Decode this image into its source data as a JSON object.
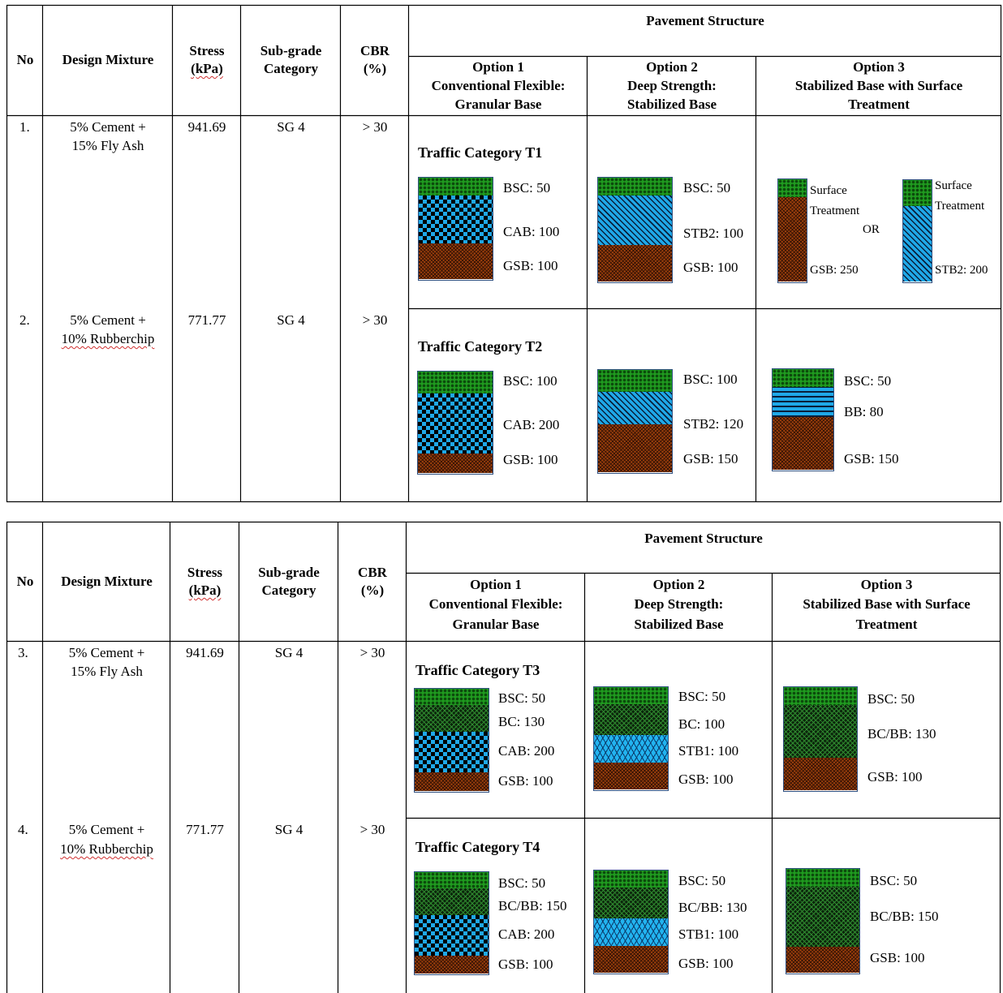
{
  "tables": [
    {
      "headers": {
        "no": "No",
        "design_mixture": "Design Mixture",
        "stress_1": "Stress",
        "stress_2": "(kPa)",
        "subgrade_1": "Sub-grade",
        "subgrade_2": "Category",
        "cbr_1": "CBR",
        "cbr_2": "(%)",
        "pavement_structure": "Pavement Structure",
        "options": [
          {
            "l1": "Option 1",
            "l2": "Conventional Flexible:",
            "l3": "Granular Base"
          },
          {
            "l1": "Option 2",
            "l2": "Deep Strength:",
            "l3": "Stabilized Base"
          },
          {
            "l1": "Option 3",
            "l2": "Stabilized Base with Surface",
            "l3": "Treatment"
          }
        ]
      },
      "rows": [
        {
          "no": "1.",
          "mix_1": "5% Cement +",
          "mix_2": "15% Fly Ash",
          "stress": "941.69",
          "subgrade": "SG 4",
          "cbr": "> 30",
          "traffic": "Traffic Category T1",
          "opt1": [
            "BSC: 50",
            "CAB: 100",
            "GSB: 100"
          ],
          "opt2": [
            "BSC: 50",
            "STB2: 100",
            "GSB: 100"
          ],
          "opt3": {
            "a_1": "Surface",
            "a_2": "Treatment",
            "or": "OR",
            "a_gsb": "GSB: 250",
            "b_1": "Surface",
            "b_2": "Treatment",
            "b_stb": "STB2: 200"
          }
        },
        {
          "no": "2.",
          "mix_1": "5% Cement +",
          "mix_2": "10% Rubberchip",
          "stress": "771.77",
          "subgrade": "SG 4",
          "cbr": "> 30",
          "traffic": "Traffic Category T2",
          "opt1": [
            "BSC: 100",
            "CAB: 200",
            "GSB: 100"
          ],
          "opt2": [
            "BSC: 100",
            "STB2: 120",
            "GSB: 150"
          ],
          "opt3": [
            "BSC: 50",
            "BB: 80",
            "GSB: 150"
          ]
        }
      ]
    },
    {
      "headers": {
        "no": "No",
        "design_mixture": "Design Mixture",
        "stress_1": "Stress",
        "stress_2": "(kPa)",
        "subgrade_1": "Sub-grade",
        "subgrade_2": "Category",
        "cbr_1": "CBR",
        "cbr_2": "(%)",
        "pavement_structure": "Pavement Structure",
        "options": [
          {
            "l1": "Option 1",
            "l2": "Conventional Flexible:",
            "l3": "Granular Base"
          },
          {
            "l1": "Option 2",
            "l2": "Deep Strength:",
            "l3": "Stabilized Base"
          },
          {
            "l1": "Option 3",
            "l2": "Stabilized Base with Surface",
            "l3": "Treatment"
          }
        ]
      },
      "rows": [
        {
          "no": "3.",
          "mix_1": "5% Cement +",
          "mix_2": "15% Fly Ash",
          "stress": "941.69",
          "subgrade": "SG 4",
          "cbr": "> 30",
          "traffic": "Traffic Category T3",
          "opt1": [
            "BSC: 50",
            "BC: 130",
            "CAB: 200",
            "GSB: 100"
          ],
          "opt2": [
            "BSC: 50",
            "BC: 100",
            "STB1: 100",
            "GSB: 100"
          ],
          "opt3": [
            "BSC: 50",
            "BC/BB: 130",
            "GSB: 100"
          ]
        },
        {
          "no": "4.",
          "mix_1": "5% Cement +",
          "mix_2": "10% Rubberchip",
          "stress": "771.77",
          "subgrade": "SG 4",
          "cbr": "> 30",
          "traffic": "Traffic Category T4",
          "opt1": [
            "BSC: 50",
            "BC/BB: 150",
            "CAB: 200",
            "GSB: 100"
          ],
          "opt2": [
            "BSC: 50",
            "BC/BB: 130",
            "STB1: 100",
            "GSB: 100"
          ],
          "opt3": [
            "BSC: 50",
            "BC/BB: 150",
            "GSB: 100"
          ]
        }
      ]
    }
  ],
  "layer_colors": {
    "BSC": "#1f9a1f",
    "BC": "#1c3f1c",
    "CAB": "#1fa8e8",
    "STB": "#1fa8e8",
    "BB": "#1fa8e8",
    "GSB": "#a0410c"
  }
}
